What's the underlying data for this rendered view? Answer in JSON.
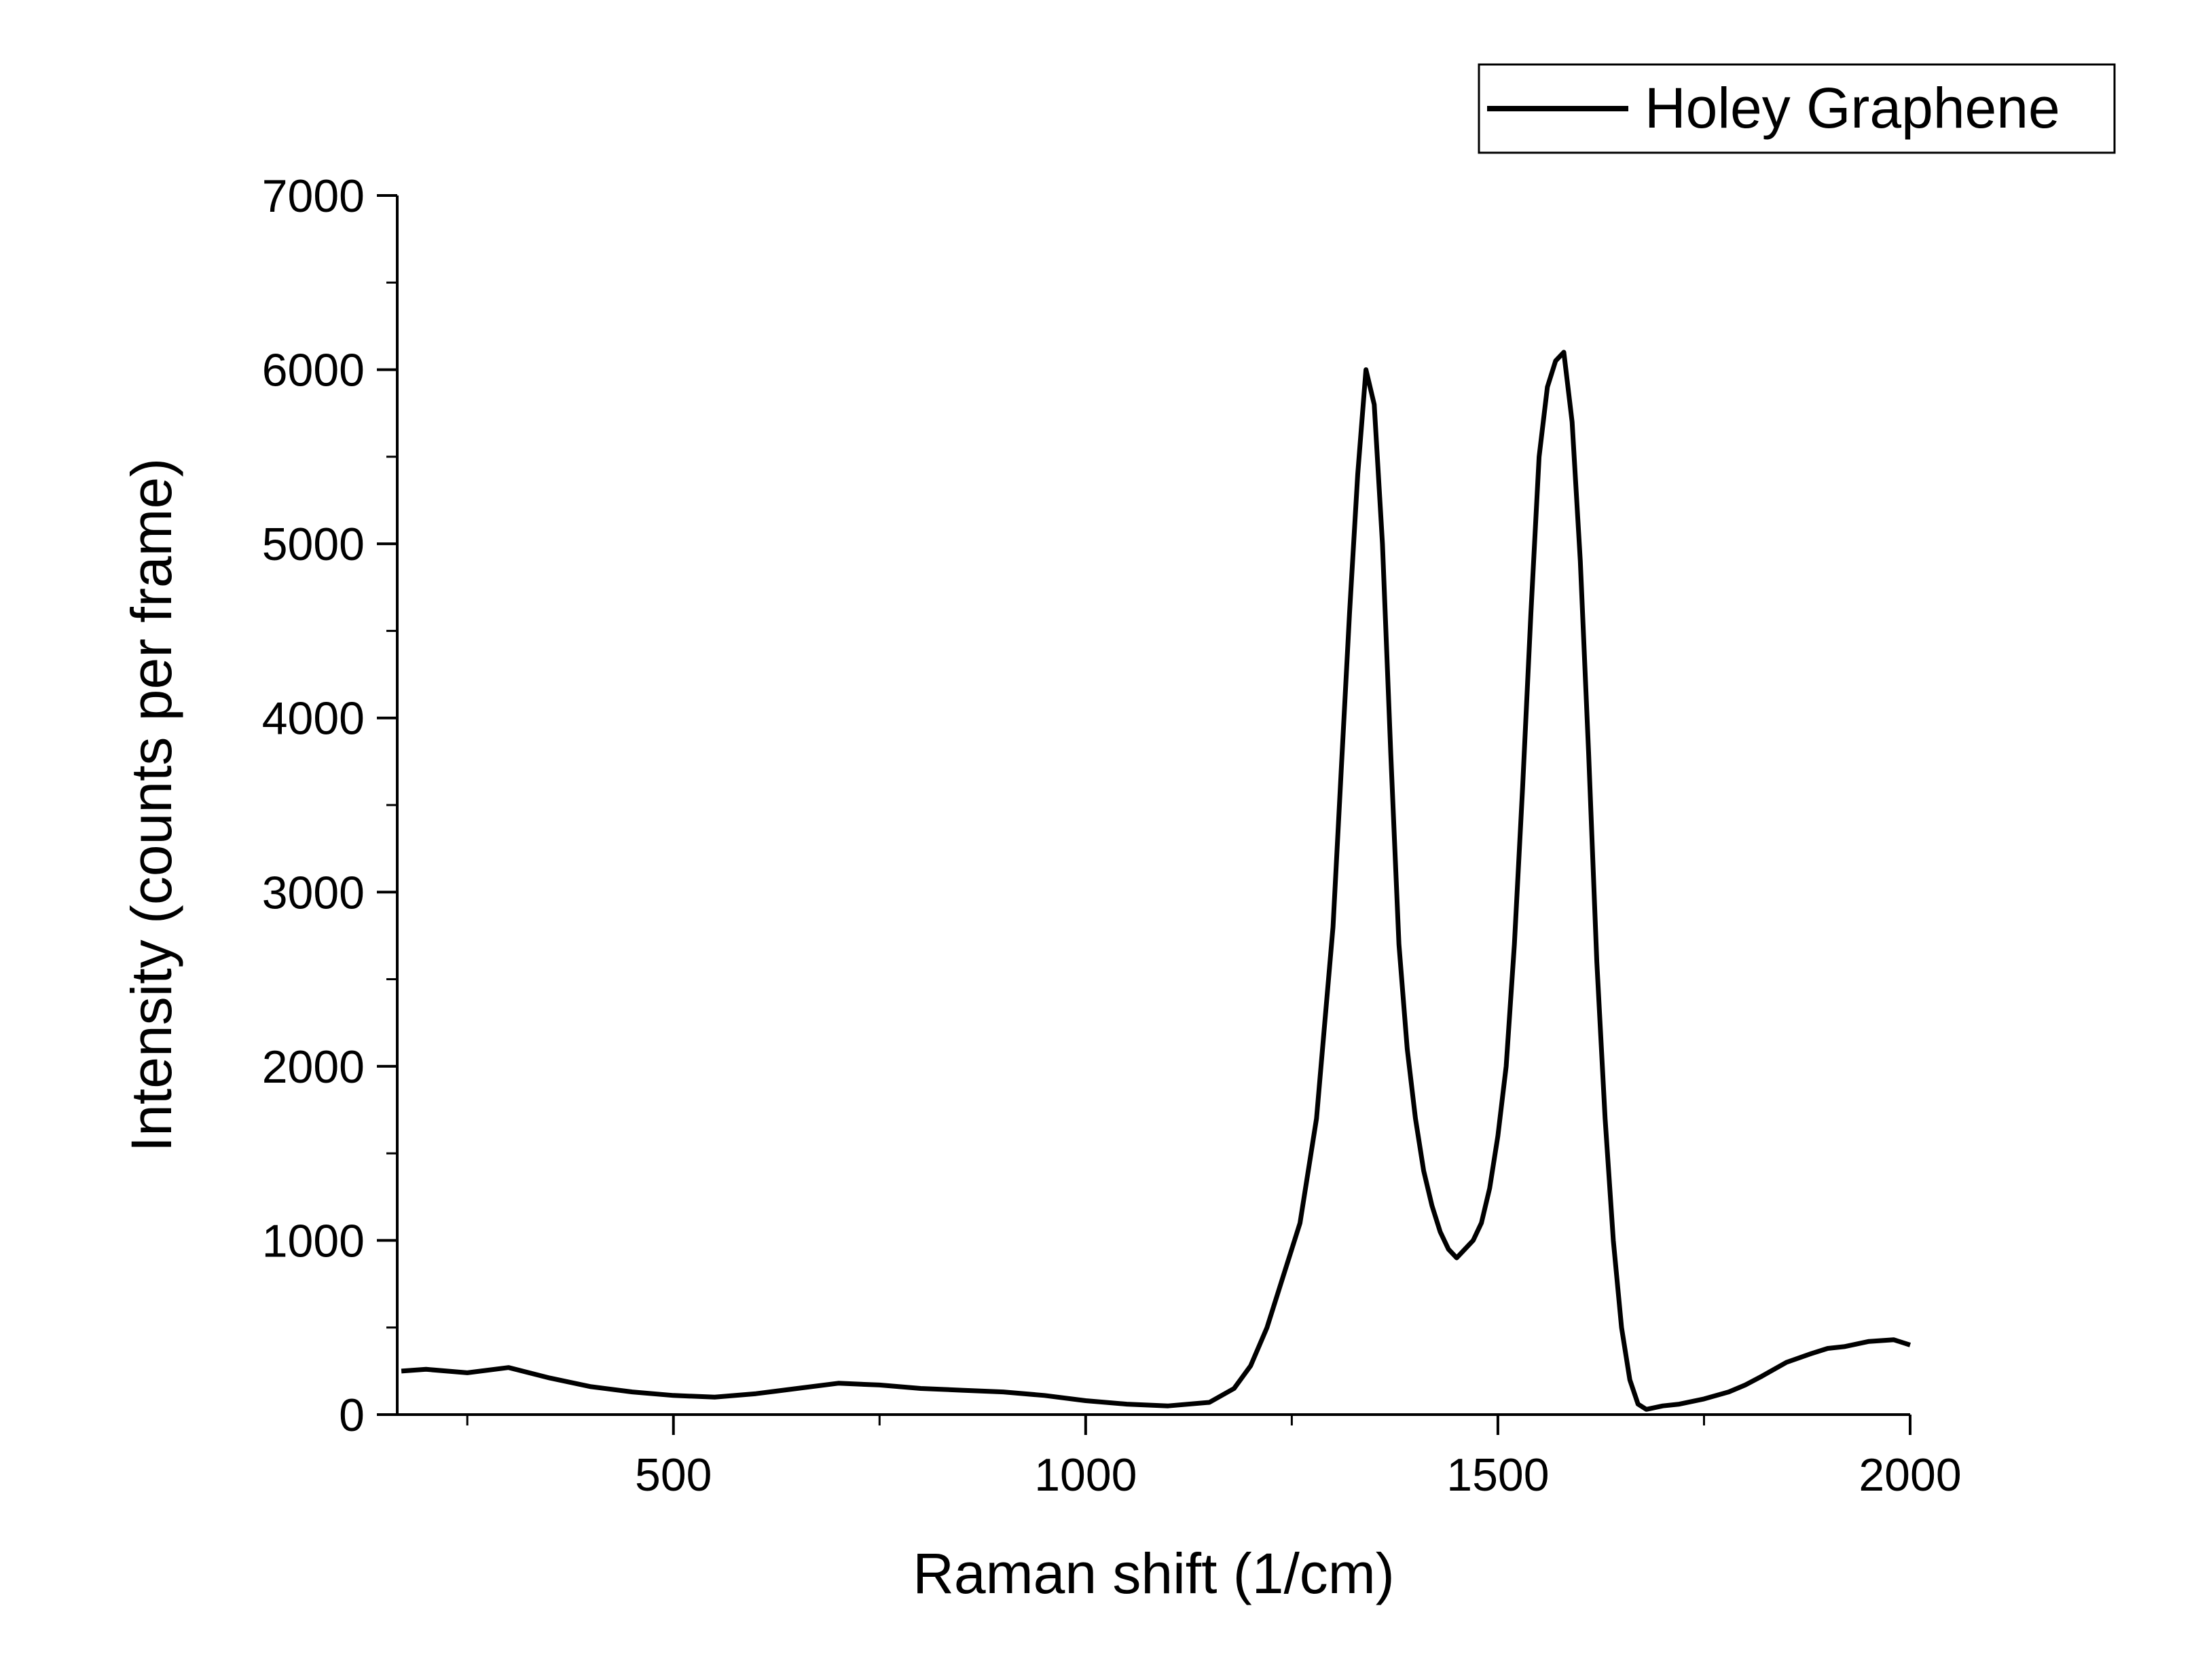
{
  "chart_data": {
    "type": "line",
    "title": "",
    "xlabel": "Raman shift (1/cm)",
    "ylabel": "Intensity (counts per frame)",
    "xlim": [
      165,
      2000
    ],
    "ylim": [
      0,
      7000
    ],
    "x_ticks": [
      500,
      1000,
      1500,
      2000
    ],
    "y_ticks": [
      0,
      1000,
      2000,
      3000,
      4000,
      5000,
      6000,
      7000
    ],
    "x_tick_labels": [
      "500",
      "1000",
      "1500",
      "2000"
    ],
    "y_tick_labels": [
      "0",
      "1000",
      "2000",
      "3000",
      "4000",
      "5000",
      "6000",
      "7000"
    ],
    "grid": false,
    "legend_position": "top-right",
    "series": [
      {
        "name": "Holey Graphene",
        "color": "#000000",
        "x": [
          170,
          200,
          250,
          300,
          350,
          400,
          450,
          500,
          550,
          600,
          650,
          700,
          750,
          800,
          850,
          900,
          950,
          1000,
          1050,
          1100,
          1150,
          1180,
          1200,
          1220,
          1240,
          1260,
          1280,
          1300,
          1310,
          1320,
          1330,
          1340,
          1350,
          1360,
          1370,
          1380,
          1390,
          1400,
          1410,
          1420,
          1430,
          1440,
          1450,
          1460,
          1470,
          1480,
          1490,
          1500,
          1510,
          1520,
          1530,
          1540,
          1550,
          1560,
          1570,
          1580,
          1590,
          1600,
          1610,
          1620,
          1630,
          1640,
          1650,
          1660,
          1670,
          1680,
          1700,
          1720,
          1750,
          1780,
          1800,
          1820,
          1850,
          1880,
          1900,
          1920,
          1950,
          1980,
          2000
        ],
        "y": [
          250,
          260,
          240,
          270,
          210,
          160,
          130,
          110,
          100,
          120,
          150,
          180,
          170,
          150,
          140,
          130,
          110,
          80,
          60,
          50,
          70,
          150,
          280,
          500,
          800,
          1100,
          1700,
          2800,
          3700,
          4600,
          5400,
          6000,
          5800,
          5000,
          3800,
          2700,
          2100,
          1700,
          1400,
          1200,
          1050,
          950,
          900,
          950,
          1000,
          1100,
          1300,
          1600,
          2000,
          2700,
          3600,
          4600,
          5500,
          5900,
          6050,
          6100,
          5700,
          4900,
          3800,
          2600,
          1700,
          1000,
          500,
          200,
          60,
          30,
          50,
          60,
          90,
          130,
          170,
          220,
          300,
          350,
          380,
          390,
          420,
          430,
          400
        ]
      }
    ]
  }
}
